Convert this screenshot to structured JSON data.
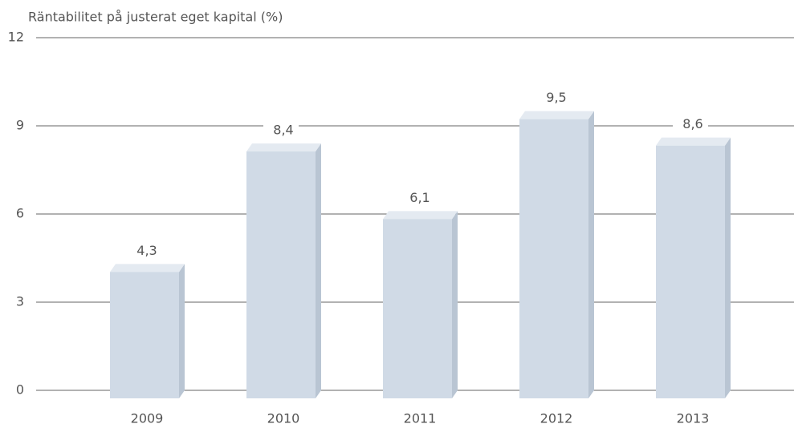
{
  "chart_data": {
    "type": "bar",
    "title": "Räntabilitet på justerat eget kapital (%)",
    "categories": [
      "2009",
      "2010",
      "2011",
      "2012",
      "2013"
    ],
    "values": [
      4.3,
      8.4,
      6.1,
      9.5,
      8.6
    ],
    "value_labels": [
      "4,3",
      "8,4",
      "6,1",
      "9,5",
      "8,6"
    ],
    "color": "#d0dae6",
    "ylim": [
      0,
      12
    ],
    "yticks": [
      0,
      3,
      6,
      9,
      12
    ],
    "grid": true
  }
}
